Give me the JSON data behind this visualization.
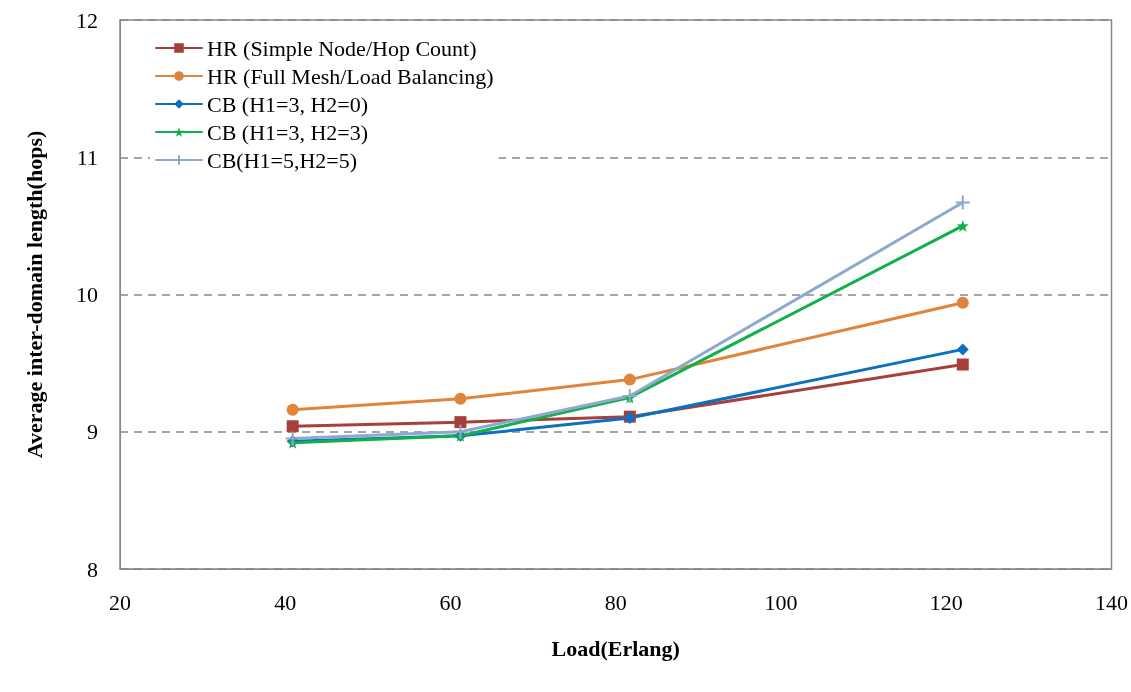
{
  "chart_data": {
    "type": "line",
    "xlabel": "Load(Erlang)",
    "ylabel": "Average inter-domain length(hops)",
    "x": [
      40.9,
      61.2,
      81.7,
      122
    ],
    "series": [
      {
        "name": "HR (Simple Node/Hop Count)",
        "color": "#a5403d",
        "marker": "square",
        "values": [
          9.04,
          9.07,
          9.11,
          9.49
        ]
      },
      {
        "name": "HR (Full Mesh/Load Balancing)",
        "color": "#e0843c",
        "marker": "circle",
        "values": [
          9.16,
          9.24,
          9.38,
          9.94
        ]
      },
      {
        "name": "CB (H1=3, H2=0)",
        "color": "#0c70c0",
        "marker": "diamond",
        "values": [
          8.93,
          8.97,
          9.1,
          9.6
        ]
      },
      {
        "name": "CB (H1=3, H2=3)",
        "color": "#12b04a",
        "marker": "star",
        "values": [
          8.92,
          8.97,
          9.25,
          10.5
        ]
      },
      {
        "name": "CB(H1=5,H2=5)",
        "color": "#8fa8d0",
        "marker": "cross",
        "values": [
          8.95,
          9.0,
          9.26,
          10.67
        ]
      }
    ],
    "xlim": [
      20,
      140
    ],
    "xticks": [
      20,
      40,
      60,
      80,
      100,
      120,
      140
    ],
    "ylim": [
      8,
      12
    ],
    "yticks": [
      8,
      9,
      10,
      11,
      12
    ],
    "grid": "y",
    "legend": "top left"
  }
}
